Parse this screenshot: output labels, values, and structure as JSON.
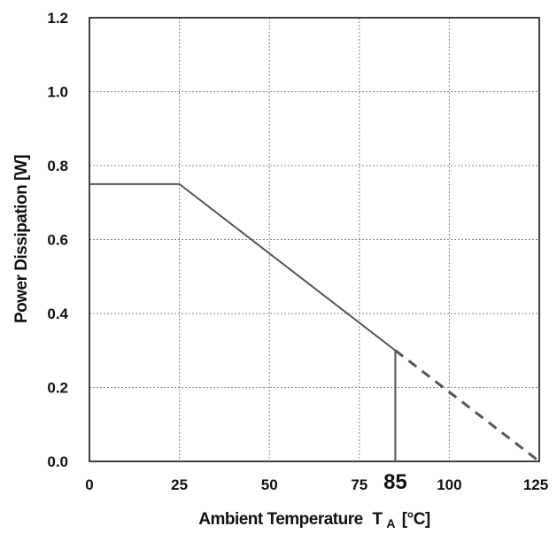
{
  "chart_data": {
    "type": "line",
    "xlabel": "Ambient Temperature",
    "xlabel_symbol": "T",
    "xlabel_subscript": "A",
    "xlabel_unit": "[°C]",
    "ylabel": "Power Dissipation [W]",
    "xlim": [
      0,
      125
    ],
    "ylim": [
      0,
      1.2
    ],
    "x_ticks": [
      {
        "value": 0,
        "label": "0"
      },
      {
        "value": 25,
        "label": "25"
      },
      {
        "value": 50,
        "label": "50"
      },
      {
        "value": 75,
        "label": "75"
      },
      {
        "value": 85,
        "label": "85",
        "emphasized": true
      },
      {
        "value": 100,
        "label": "100"
      },
      {
        "value": 125,
        "label": "125"
      }
    ],
    "y_ticks": [
      {
        "value": 0.0,
        "label": "0.0"
      },
      {
        "value": 0.2,
        "label": "0.2"
      },
      {
        "value": 0.4,
        "label": "0.4"
      },
      {
        "value": 0.6,
        "label": "0.6"
      },
      {
        "value": 0.8,
        "label": "0.8"
      },
      {
        "value": 1.0,
        "label": "1.0"
      },
      {
        "value": 1.2,
        "label": "1.2"
      }
    ],
    "grid": true,
    "series": [
      {
        "style": "solid",
        "x": [
          0,
          25,
          85
        ],
        "y": [
          0.75,
          0.75,
          0.3
        ]
      },
      {
        "style": "dashed",
        "x": [
          85,
          125
        ],
        "y": [
          0.3,
          0.0
        ]
      }
    ],
    "markers": [
      {
        "type": "vertical-line",
        "x": 85,
        "y_from": 0.0,
        "y_to": 0.3
      }
    ],
    "colors": {
      "line": "#555555",
      "grid": "#888888",
      "axis": "#000000"
    }
  }
}
